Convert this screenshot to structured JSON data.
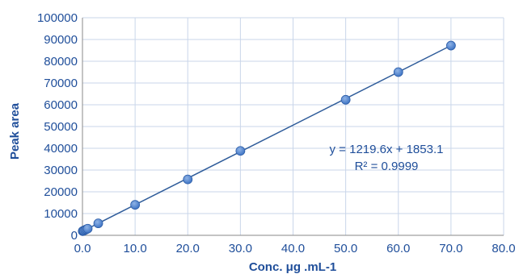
{
  "chart_data": {
    "type": "scatter",
    "title": "",
    "xlabel": "Conc. μg .mL-1",
    "ylabel": "Peak area",
    "xlim": [
      0,
      80
    ],
    "ylim": [
      0,
      100000
    ],
    "x_ticks": [
      0,
      10,
      20,
      30,
      40,
      50,
      60,
      70,
      80
    ],
    "y_ticks": [
      0,
      10000,
      20000,
      30000,
      40000,
      50000,
      60000,
      70000,
      80000,
      90000,
      100000
    ],
    "x_tick_labels": [
      "0.0",
      "10.0",
      "20.0",
      "30.0",
      "40.0",
      "50.0",
      "60.0",
      "70.0",
      "80.0"
    ],
    "y_tick_labels": [
      "0",
      "10000",
      "20000",
      "30000",
      "40000",
      "50000",
      "60000",
      "70000",
      "80000",
      "90000",
      "100000"
    ],
    "grid": true,
    "series": [
      {
        "marker_color": "#3e74c4",
        "points": [
          {
            "x": 0.05,
            "y": 1900
          },
          {
            "x": 0.1,
            "y": 2000
          },
          {
            "x": 0.25,
            "y": 2150
          },
          {
            "x": 0.5,
            "y": 2450
          },
          {
            "x": 0.75,
            "y": 2750
          },
          {
            "x": 1.0,
            "y": 3050
          },
          {
            "x": 3.0,
            "y": 5500
          },
          {
            "x": 10.0,
            "y": 14000
          },
          {
            "x": 20.0,
            "y": 25700
          },
          {
            "x": 30.0,
            "y": 38800
          },
          {
            "x": 50.0,
            "y": 62300
          },
          {
            "x": 60.0,
            "y": 75000
          },
          {
            "x": 70.0,
            "y": 87200
          }
        ]
      }
    ],
    "trendline": {
      "type": "linear",
      "slope": 1219.6,
      "intercept": 1853.1,
      "x_range": [
        0,
        70
      ],
      "color": "#2f5c9a"
    },
    "annotations": {
      "equation": "y = 1219.6x + 1853.1",
      "r_squared": "R² = 0.9999"
    },
    "colors": {
      "grid": "#c9d6ea",
      "text": "#1f4e9a",
      "axis": "#8a8a8a"
    }
  }
}
